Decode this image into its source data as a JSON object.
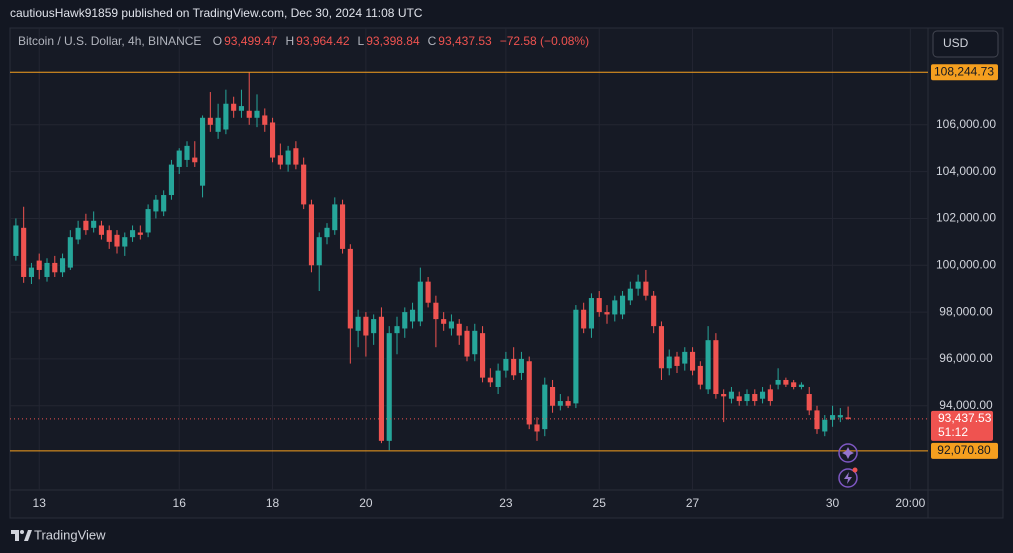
{
  "header": {
    "publisher": "cautiousHawk91859 published on TradingView.com, Dec 30, 2024 11:08 UTC"
  },
  "footer": {
    "brand": "TradingView"
  },
  "chart_data": {
    "type": "candlestick",
    "title": "Bitcoin / U.S. Dollar, 4h, BINANCE",
    "legend_ohlc": [
      {
        "key": "O",
        "text": "93,499.47"
      },
      {
        "key": "H",
        "text": "93,964.42"
      },
      {
        "key": "L",
        "text": "93,398.84"
      },
      {
        "key": "C",
        "text": "93,437.53"
      }
    ],
    "change": "−72.58 (−0.08%)",
    "currency": "USD",
    "categories": [
      null,
      null,
      null,
      "13",
      null,
      null,
      null,
      null,
      null,
      null,
      null,
      null,
      null,
      null,
      null,
      null,
      null,
      null,
      null,
      null,
      null,
      "16",
      null,
      null,
      null,
      null,
      null,
      null,
      null,
      null,
      null,
      null,
      null,
      "18",
      null,
      null,
      null,
      null,
      null,
      null,
      null,
      null,
      null,
      null,
      null,
      "20",
      null,
      null,
      null,
      null,
      null,
      null,
      null,
      null,
      null,
      null,
      null,
      null,
      null,
      null,
      null,
      null,
      null,
      "23",
      null,
      null,
      null,
      null,
      null,
      null,
      null,
      null,
      null,
      null,
      null,
      "25",
      null,
      null,
      null,
      null,
      null,
      null,
      null,
      null,
      null,
      null,
      null,
      "27",
      null,
      null,
      null,
      null,
      null,
      null,
      null,
      null,
      null,
      null,
      null,
      null,
      null,
      null,
      null,
      null,
      null,
      "30",
      null,
      null,
      null,
      null,
      null,
      null,
      null,
      null,
      null,
      "20:00",
      null
    ],
    "open": [
      100400,
      101600,
      99500,
      100200,
      99500,
      100100,
      99700,
      99900,
      101100,
      101900,
      101600,
      101700,
      101500,
      101300,
      100800,
      101200,
      101400,
      101400,
      102300,
      102300,
      103000,
      104200,
      104500,
      104600,
      103400,
      106300,
      105700,
      105800,
      106900,
      106600,
      106600,
      106300,
      106400,
      106100,
      104700,
      104300,
      105000,
      104300,
      102600,
      100000,
      101200,
      101500,
      102600,
      100700,
      97200,
      97800,
      97100,
      97800,
      92500,
      97100,
      97300,
      97600,
      97600,
      99300,
      98400,
      97700,
      97300,
      97500,
      97200,
      96200,
      97100,
      95200,
      94800,
      95500,
      96000,
      95400,
      95900,
      93200,
      93000,
      94800,
      94000,
      94200,
      94100,
      98100,
      97300,
      98600,
      98000,
      97900,
      97900,
      98500,
      99000,
      99300,
      98700,
      97400,
      95600,
      96100,
      95800,
      96300,
      95700,
      94700,
      96800,
      94500,
      94300,
      94400,
      94200,
      94500,
      94300,
      94700,
      94900,
      95100,
      95000,
      94800,
      94500,
      93800,
      92900,
      93400,
      93500,
      93499.47,
      null,
      null,
      null,
      null,
      null,
      null,
      null,
      null,
      null
    ],
    "high": [
      102000,
      102500,
      100100,
      100500,
      100300,
      100400,
      100500,
      101500,
      101900,
      102200,
      102300,
      101900,
      101700,
      101500,
      101400,
      101700,
      101700,
      102600,
      103000,
      103200,
      104500,
      105000,
      105300,
      105300,
      106400,
      107400,
      106900,
      107500,
      107200,
      107500,
      108250,
      107300,
      106700,
      106300,
      105200,
      105100,
      105300,
      104600,
      102800,
      101400,
      101800,
      102900,
      102800,
      100900,
      98100,
      98000,
      97900,
      98200,
      97400,
      97800,
      98200,
      98400,
      99900,
      99500,
      98700,
      98000,
      97900,
      97700,
      97400,
      97500,
      97400,
      95600,
      95800,
      96300,
      96500,
      96300,
      96100,
      93500,
      95200,
      95100,
      94500,
      94400,
      98300,
      98400,
      98800,
      98900,
      98300,
      98700,
      98900,
      99300,
      99600,
      99800,
      98900,
      97600,
      96400,
      96300,
      96500,
      96500,
      95900,
      97400,
      97100,
      94700,
      94800,
      94600,
      94700,
      94700,
      94800,
      94900,
      95600,
      95200,
      95100,
      95000,
      94800,
      94000,
      93600,
      94000,
      93900,
      93964.42,
      null,
      null,
      null,
      null,
      null,
      null,
      null,
      null,
      null
    ],
    "low": [
      100200,
      99250,
      99200,
      99400,
      99300,
      99500,
      99500,
      99800,
      100900,
      101300,
      101400,
      101100,
      100700,
      100500,
      100400,
      101000,
      101100,
      101200,
      102000,
      102100,
      102800,
      103900,
      104200,
      104200,
      102900,
      105700,
      105400,
      105600,
      106300,
      106300,
      106000,
      105900,
      105700,
      104400,
      104100,
      104000,
      104100,
      102400,
      99700,
      98900,
      100900,
      101300,
      100500,
      95800,
      96500,
      96100,
      96600,
      92400,
      92100,
      96200,
      96900,
      97300,
      97400,
      98200,
      96500,
      97200,
      97000,
      96600,
      95900,
      95900,
      95000,
      94800,
      94500,
      95200,
      95100,
      95100,
      93000,
      92500,
      92700,
      93700,
      93800,
      93900,
      93900,
      97100,
      96900,
      97800,
      97500,
      97600,
      97700,
      98300,
      98700,
      98500,
      97100,
      95100,
      95300,
      95400,
      95500,
      95300,
      94700,
      94500,
      94300,
      93300,
      94100,
      94000,
      94000,
      94000,
      94100,
      94000,
      94700,
      94800,
      94700,
      94700,
      93600,
      92800,
      92700,
      93100,
      93300,
      93398.84,
      null,
      null,
      null,
      null,
      null,
      null,
      null,
      null,
      null
    ],
    "close": [
      101700,
      99500,
      99900,
      99800,
      100100,
      99700,
      100300,
      101200,
      101600,
      101500,
      101900,
      101300,
      101000,
      100800,
      101200,
      101500,
      101300,
      102400,
      102800,
      103000,
      104300,
      104900,
      105100,
      104400,
      106300,
      106000,
      106300,
      106900,
      106600,
      106800,
      106300,
      106600,
      106000,
      104600,
      104300,
      104900,
      104300,
      102600,
      100000,
      101200,
      101600,
      102600,
      100700,
      97300,
      97800,
      97000,
      97700,
      92500,
      97100,
      97400,
      98000,
      98100,
      99300,
      98400,
      97700,
      97500,
      97600,
      97000,
      96100,
      97200,
      95200,
      95000,
      95500,
      96000,
      95300,
      96000,
      93200,
      92900,
      94900,
      94000,
      94200,
      94000,
      98100,
      97300,
      98600,
      98000,
      97900,
      98500,
      98700,
      99000,
      99300,
      98700,
      97400,
      95600,
      96100,
      95700,
      96300,
      95500,
      94900,
      96800,
      94500,
      94400,
      94600,
      94200,
      94500,
      94200,
      94600,
      94200,
      95100,
      94900,
      94800,
      94900,
      93800,
      93000,
      93400,
      93600,
      93600,
      93437.53,
      null,
      null,
      null,
      null,
      null,
      null,
      null,
      null,
      null
    ],
    "up_color": "#26a69a",
    "down_color": "#ef5350",
    "ylim": [
      90400,
      110050
    ],
    "yticks": [
      {
        "value": 94000,
        "label": "94,000.00"
      },
      {
        "value": 96000,
        "label": "96,000.00"
      },
      {
        "value": 98000,
        "label": "98,000.00"
      },
      {
        "value": 100000,
        "label": "100,000.00"
      },
      {
        "value": 102000,
        "label": "102,000.00"
      },
      {
        "value": 104000,
        "label": "104,000.00"
      },
      {
        "value": 106000,
        "label": "106,000.00"
      }
    ],
    "hlines": [
      {
        "value": 108244.73,
        "label": "108,244.73",
        "color": "#f59f1f"
      },
      {
        "value": 92070.8,
        "label": "92,070.80",
        "color": "#f59f1f"
      }
    ],
    "last_price": {
      "label": "93,437.53",
      "countdown": "51:12"
    },
    "grid": true
  }
}
